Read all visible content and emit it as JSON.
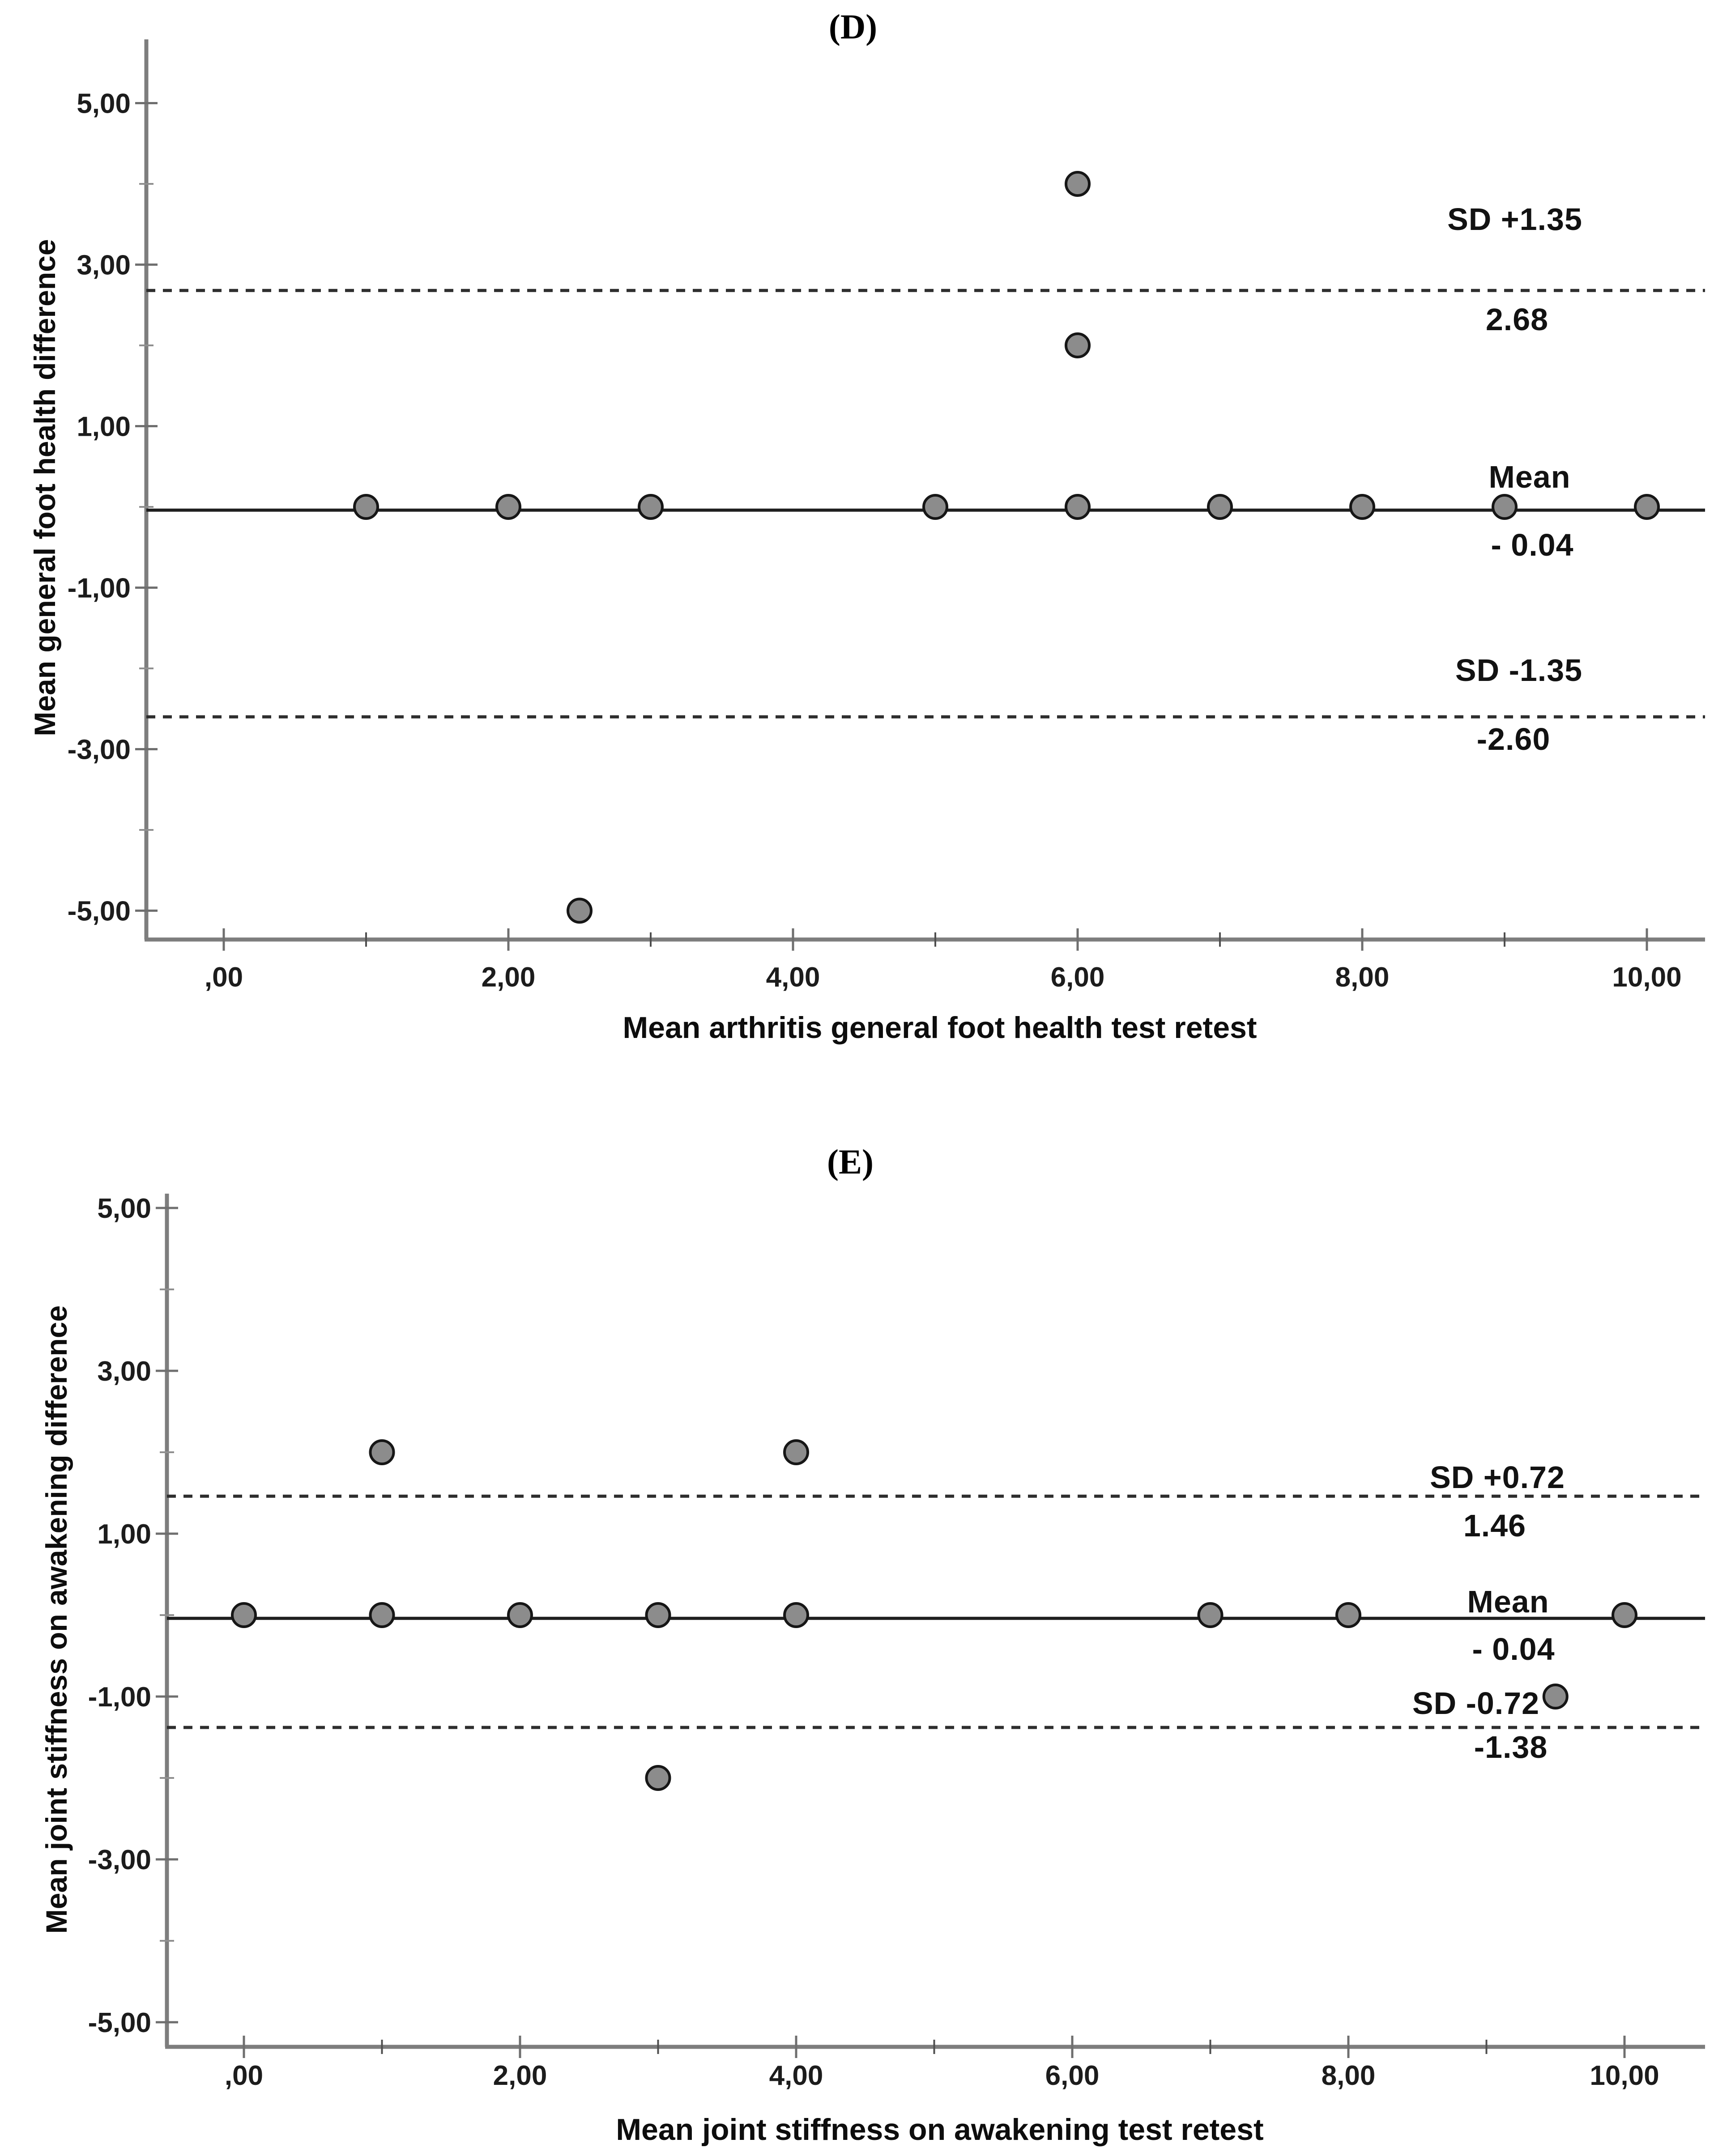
{
  "figure": {
    "background": "#ffffff",
    "point_fill": "#8c8c8c",
    "point_stroke": "#161616",
    "mean_line_color": "#1f1f1f",
    "dashed_line_color": "#2e2e2e",
    "axis_color": "#7d7d7d"
  },
  "chart_data": [
    {
      "type": "scatter",
      "panel_label": "(D)",
      "xlabel": "Mean arthritis general foot health test retest",
      "ylabel": "Mean general foot health difference",
      "xlim": [
        -0.55,
        10.4
      ],
      "ylim": [
        -5.6,
        5.8
      ],
      "grid": false,
      "x_ticks": [
        0,
        1,
        2,
        3,
        4,
        5,
        6,
        7,
        8,
        9,
        10
      ],
      "x_tick_label_values": [
        0,
        2,
        4,
        6,
        8,
        10
      ],
      "x_tick_labels": [
        ",00",
        "2,00",
        "4,00",
        "6,00",
        "8,00",
        "10,00"
      ],
      "y_ticks": [
        -5,
        -4,
        -3,
        -2,
        -1,
        0,
        1,
        2,
        3,
        4,
        5
      ],
      "y_tick_label_values": [
        5,
        3,
        1,
        -1,
        -3,
        -5
      ],
      "y_tick_labels": [
        "5,00",
        "3,00",
        "1,00",
        "-1,00",
        "-3,00",
        "-5,00"
      ],
      "lines": {
        "mean": {
          "value": -0.04,
          "label": "Mean",
          "value_label": "- 0.04"
        },
        "upper": {
          "value": 2.68,
          "label": "SD +1.35",
          "value_label": "2.68"
        },
        "lower": {
          "value": -2.6,
          "label": "SD -1.35",
          "value_label": "-2.60"
        }
      },
      "points": [
        [
          1,
          0
        ],
        [
          2,
          0
        ],
        [
          3,
          0
        ],
        [
          5,
          0
        ],
        [
          6,
          0
        ],
        [
          7,
          0
        ],
        [
          8,
          0
        ],
        [
          9,
          0
        ],
        [
          10,
          0
        ],
        [
          6,
          4
        ],
        [
          6,
          2
        ],
        [
          2.5,
          -5
        ]
      ]
    },
    {
      "type": "scatter",
      "panel_label": "(E)",
      "xlabel": "Mean joint stiffness on awakening test retest",
      "ylabel": "Mean joint stiffness on awakening difference",
      "xlim": [
        -0.55,
        10.4
      ],
      "ylim": [
        -5.4,
        5.4
      ],
      "grid": false,
      "x_ticks": [
        0,
        1,
        2,
        3,
        4,
        5,
        6,
        7,
        8,
        9,
        10
      ],
      "x_tick_label_values": [
        0,
        2,
        4,
        6,
        8,
        10
      ],
      "x_tick_labels": [
        ",00",
        "2,00",
        "4,00",
        "6,00",
        "8,00",
        "10,00"
      ],
      "y_ticks": [
        -5,
        -4,
        -3,
        -2,
        -1,
        0,
        1,
        2,
        3,
        4,
        5
      ],
      "y_tick_label_values": [
        5,
        3,
        1,
        -1,
        -3,
        -5
      ],
      "y_tick_labels": [
        "5,00",
        "3,00",
        "1,00",
        "-1,00",
        "-3,00",
        "-5,00"
      ],
      "lines": {
        "mean": {
          "value": -0.04,
          "label": "Mean",
          "value_label": "- 0.04"
        },
        "upper": {
          "value": 1.46,
          "label": "SD +0.72",
          "value_label": "1.46"
        },
        "lower": {
          "value": -1.38,
          "label": "SD -0.72",
          "value_label": "-1.38"
        }
      },
      "points": [
        [
          0,
          0
        ],
        [
          1,
          0
        ],
        [
          2,
          0
        ],
        [
          3,
          0
        ],
        [
          4,
          0
        ],
        [
          7,
          0
        ],
        [
          8,
          0
        ],
        [
          10,
          0
        ],
        [
          1,
          2
        ],
        [
          4,
          2
        ],
        [
          3,
          -2
        ],
        [
          9.5,
          -1
        ]
      ]
    }
  ]
}
